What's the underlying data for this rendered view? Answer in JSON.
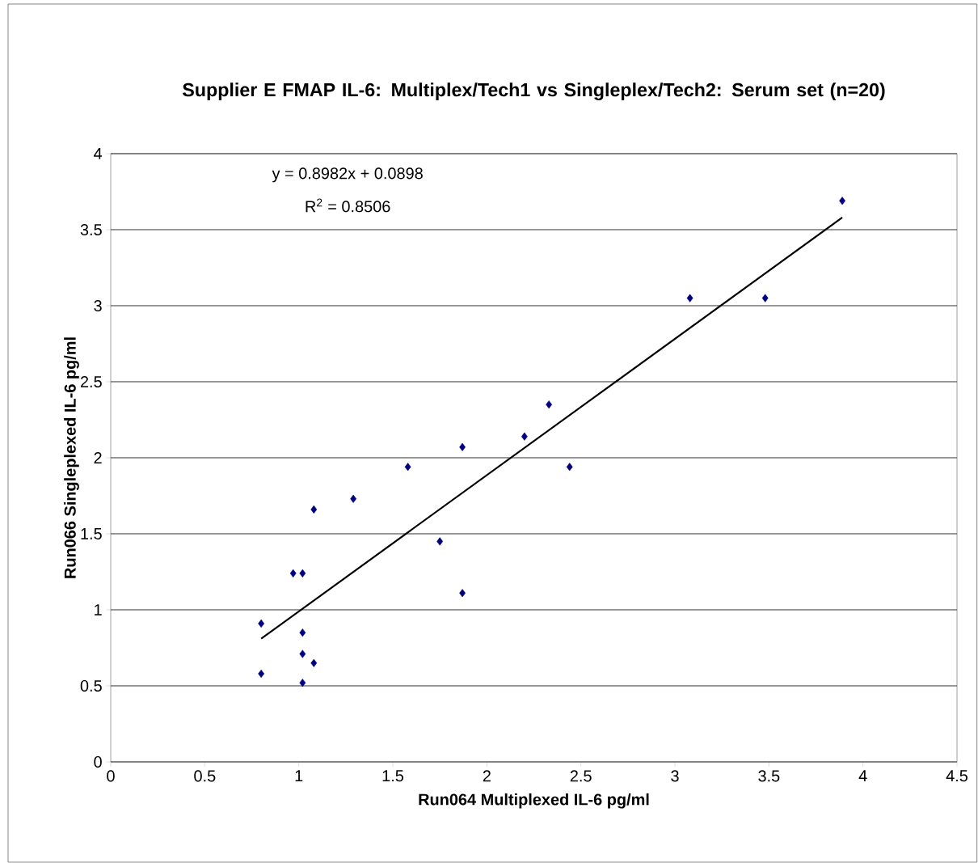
{
  "chart_data": {
    "type": "scatter",
    "title": "Supplier E FMAP IL-6: Multiplex/Tech1 vs Singleplex/Tech2: Serum set (n=20)",
    "xlabel": "Run064 Multiplexed IL-6 pg/ml",
    "ylabel": "Run066 Singleplexed IL-6 pg/ml",
    "annotations": [
      "y = 0.8982x + 0.0898",
      "R$^{2}$ = 0.8506"
    ],
    "xlim": [
      0,
      4.5
    ],
    "xticks": [
      0,
      0.5,
      1,
      1.5,
      2,
      2.5,
      3,
      3.5,
      4,
      4.5
    ],
    "ylim": [
      0,
      4
    ],
    "yticks": [
      0,
      0.5,
      1,
      1.5,
      2,
      2.5,
      3,
      3.5,
      4
    ],
    "grid": "y",
    "marker": "diamond",
    "series": [
      {
        "color": "#000080",
        "x": [
          0.8,
          0.8,
          0.97,
          1.02,
          1.02,
          1.02,
          1.02,
          1.08,
          1.08,
          1.29,
          1.58,
          1.75,
          1.87,
          1.87,
          2.2,
          2.33,
          2.44,
          3.08,
          3.48,
          3.89
        ],
        "values": [
          0.91,
          0.58,
          1.24,
          1.24,
          0.85,
          0.71,
          0.52,
          1.66,
          0.65,
          1.73,
          1.94,
          1.45,
          2.07,
          1.11,
          2.14,
          2.35,
          1.94,
          3.05,
          3.05,
          3.69
        ]
      },
      {
        "type": "line",
        "marker": "none",
        "color": "#000000",
        "x": [
          0.8,
          3.89
        ],
        "values": [
          0.81,
          3.58
        ]
      }
    ]
  }
}
